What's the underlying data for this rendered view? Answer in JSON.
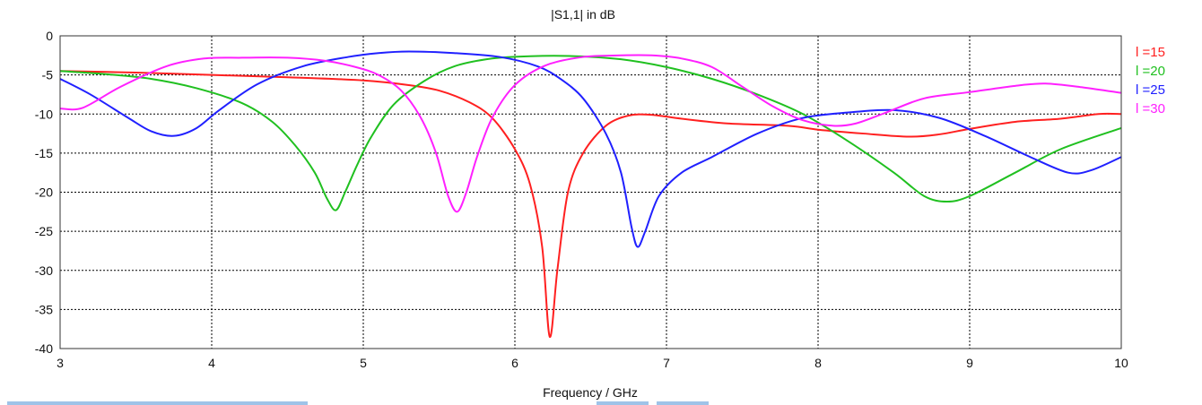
{
  "chart_data": {
    "type": "line",
    "title": "|S1,1| in dB",
    "xlabel": "Frequency / GHz",
    "ylabel": "",
    "xlim": [
      3,
      10
    ],
    "ylim": [
      -40,
      0
    ],
    "xticks": [
      3,
      4,
      5,
      6,
      7,
      8,
      9,
      10
    ],
    "yticks": [
      0,
      -5,
      -10,
      -15,
      -20,
      -25,
      -30,
      -35,
      -40
    ],
    "grid": true,
    "legend_position": "right",
    "series": [
      {
        "name": "l =15",
        "color": "#ff2020",
        "x": [
          3.0,
          3.5,
          4.0,
          4.5,
          5.0,
          5.3,
          5.5,
          5.7,
          5.85,
          6.0,
          6.1,
          6.18,
          6.23,
          6.28,
          6.35,
          6.45,
          6.6,
          6.75,
          6.9,
          7.1,
          7.4,
          7.8,
          8.0,
          8.3,
          8.6,
          8.8,
          9.0,
          9.3,
          9.6,
          9.85,
          10.0
        ],
        "y": [
          -4.5,
          -4.7,
          -5.0,
          -5.3,
          -5.7,
          -6.3,
          -7.0,
          -8.5,
          -10.5,
          -14.5,
          -19.0,
          -27.0,
          -38.5,
          -30.0,
          -20.0,
          -15.0,
          -11.5,
          -10.2,
          -10.1,
          -10.6,
          -11.2,
          -11.5,
          -12.0,
          -12.5,
          -12.9,
          -12.6,
          -11.9,
          -11.0,
          -10.6,
          -10.0,
          -10.0
        ]
      },
      {
        "name": "l =20",
        "color": "#20c020",
        "x": [
          3.0,
          3.3,
          3.6,
          3.9,
          4.2,
          4.4,
          4.55,
          4.68,
          4.76,
          4.82,
          4.88,
          4.96,
          5.05,
          5.2,
          5.4,
          5.6,
          5.85,
          6.1,
          6.4,
          6.7,
          7.0,
          7.3,
          7.6,
          7.9,
          8.2,
          8.5,
          8.7,
          8.85,
          9.0,
          9.3,
          9.6,
          10.0
        ],
        "y": [
          -4.5,
          -4.9,
          -5.5,
          -6.7,
          -8.6,
          -11.0,
          -14.0,
          -17.5,
          -20.8,
          -22.3,
          -20.0,
          -16.5,
          -13.0,
          -8.8,
          -5.8,
          -3.9,
          -2.9,
          -2.6,
          -2.6,
          -3.0,
          -4.0,
          -5.5,
          -7.5,
          -10.0,
          -13.5,
          -17.5,
          -20.5,
          -21.2,
          -20.5,
          -17.5,
          -14.5,
          -11.8
        ]
      },
      {
        "name": "l =25",
        "color": "#2020ff",
        "x": [
          3.0,
          3.2,
          3.45,
          3.6,
          3.75,
          3.9,
          4.05,
          4.3,
          4.6,
          4.9,
          5.1,
          5.3,
          5.6,
          5.9,
          6.15,
          6.3,
          6.45,
          6.6,
          6.7,
          6.77,
          6.81,
          6.86,
          6.95,
          7.1,
          7.3,
          7.6,
          7.9,
          8.2,
          8.5,
          8.8,
          9.1,
          9.4,
          9.65,
          9.8,
          10.0
        ],
        "y": [
          -5.5,
          -7.5,
          -10.5,
          -12.2,
          -12.8,
          -11.8,
          -9.5,
          -6.2,
          -3.9,
          -2.7,
          -2.2,
          -2.0,
          -2.2,
          -2.7,
          -3.9,
          -5.5,
          -8.0,
          -12.5,
          -17.5,
          -24.5,
          -27.0,
          -25.0,
          -20.5,
          -17.5,
          -15.5,
          -12.5,
          -10.5,
          -9.8,
          -9.5,
          -10.5,
          -12.8,
          -15.5,
          -17.5,
          -17.2,
          -15.5
        ]
      },
      {
        "name": "l =30",
        "color": "#ff20ff",
        "x": [
          3.0,
          3.15,
          3.4,
          3.7,
          3.95,
          4.2,
          4.5,
          4.75,
          4.95,
          5.1,
          5.25,
          5.38,
          5.48,
          5.56,
          5.62,
          5.68,
          5.75,
          5.85,
          6.0,
          6.2,
          6.45,
          6.7,
          6.9,
          7.1,
          7.3,
          7.5,
          7.7,
          7.9,
          8.1,
          8.25,
          8.45,
          8.7,
          9.0,
          9.3,
          9.5,
          9.75,
          10.0
        ],
        "y": [
          -9.3,
          -9.2,
          -6.5,
          -3.9,
          -2.9,
          -2.8,
          -2.8,
          -3.2,
          -4.0,
          -5.0,
          -7.0,
          -10.5,
          -15.0,
          -20.5,
          -22.5,
          -20.0,
          -15.5,
          -10.5,
          -6.3,
          -3.8,
          -2.7,
          -2.5,
          -2.5,
          -2.9,
          -4.0,
          -6.5,
          -9.0,
          -10.8,
          -11.5,
          -11.2,
          -9.8,
          -8.0,
          -7.2,
          -6.4,
          -6.1,
          -6.6,
          -7.3
        ]
      }
    ]
  }
}
